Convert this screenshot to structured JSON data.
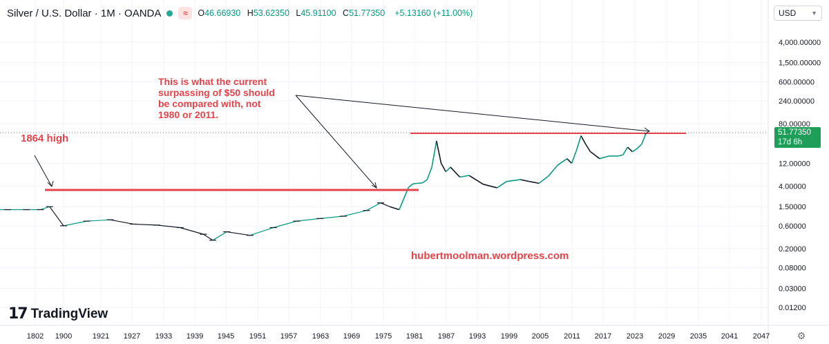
{
  "header": {
    "symbol": "Silver / U.S. Dollar · 1M · OANDA",
    "open_label": "O",
    "open": "46.66930",
    "high_label": "H",
    "high": "53.62350",
    "low_label": "L",
    "low": "45.91100",
    "close_label": "C",
    "close": "51.77350",
    "change": "+5.13160 (+11.00%)",
    "currency": "USD"
  },
  "price_tag": {
    "price": "51.77350",
    "countdown": "17d 6h"
  },
  "brand": "TradingView",
  "watermark": "hubertmoolman.wordpress.com",
  "annotations": {
    "main": [
      "This is what the current",
      "surpassing of $50 should",
      "be compared with, not",
      "1980 or 2011."
    ],
    "high_1864": "1864 high"
  },
  "colors": {
    "annotation": "#e5434a",
    "up": "#089981",
    "down": "#131722",
    "tag": "#1e9e58",
    "grid": "#f0f3fa"
  },
  "icons": {
    "settings": "gear-icon",
    "currency_dropdown": "chevron-down-icon"
  },
  "chart_data": {
    "type": "line",
    "scale": "log",
    "y_tick_labels": [
      "4,000.00000",
      "1,500.00000",
      "600.00000",
      "240.00000",
      "80.00000",
      "12.00000",
      "4.00000",
      "1.50000",
      "0.60000",
      "0.20000",
      "0.08000",
      "0.03000",
      "0.01200"
    ],
    "y_ticks": [
      4000,
      1500,
      600,
      240,
      80,
      12,
      4,
      1.5,
      0.6,
      0.2,
      0.08,
      0.03,
      0.012
    ],
    "x_tick_labels": [
      "1802",
      "1900",
      "1921",
      "1927",
      "1933",
      "1939",
      "1945",
      "1951",
      "1957",
      "1963",
      "1969",
      "1975",
      "1981",
      "1987",
      "1993",
      "1999",
      "2005",
      "2011",
      "2017",
      "2023",
      "2029",
      "2035",
      "2041",
      "2047"
    ],
    "series": [
      {
        "x": [
          1885,
          1888,
          1892,
          1895,
          1897,
          1900,
          1905,
          1910,
          1915,
          1920,
          1925,
          1930,
          1932,
          1935,
          1940,
          1945,
          1950,
          1955,
          1960,
          1965,
          1968,
          1970,
          1972,
          1974,
          1975,
          1976,
          1977,
          1978,
          1979,
          1980,
          1981,
          1982,
          1983,
          1985,
          1987,
          1990,
          1993,
          1995,
          1998,
          2000,
          2002,
          2004,
          2006,
          2008,
          2009,
          2010,
          2011,
          2012,
          2013,
          2015,
          2017,
          2019,
          2020,
          2021,
          2022,
          2023,
          2024,
          2025
        ],
        "y": [
          1.3,
          1.3,
          1.3,
          1.3,
          1.5,
          0.6,
          0.75,
          0.8,
          0.65,
          0.62,
          0.55,
          0.4,
          0.3,
          0.45,
          0.38,
          0.55,
          0.75,
          0.85,
          0.95,
          1.25,
          1.8,
          1.5,
          1.3,
          3.8,
          4.5,
          4.6,
          4.7,
          5.5,
          10,
          35,
          12,
          8,
          10,
          6.2,
          6.7,
          4.4,
          3.7,
          5.0,
          5.5,
          5.0,
          4.6,
          6.5,
          11,
          15,
          12,
          22,
          45,
          30,
          21,
          15,
          17,
          17,
          18,
          26,
          21,
          24,
          30,
          51.77
        ]
      }
    ],
    "annotation_levels": {
      "line_1864": 3.4,
      "line_1980": 50
    }
  }
}
